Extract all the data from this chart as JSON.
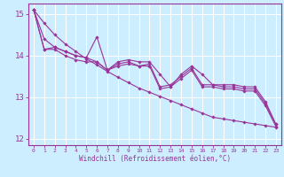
{
  "title": "",
  "xlabel": "Windchill (Refroidissement éolien,°C)",
  "ylabel": "",
  "x": [
    0,
    1,
    2,
    3,
    4,
    5,
    6,
    7,
    8,
    9,
    10,
    11,
    12,
    13,
    14,
    15,
    16,
    17,
    18,
    19,
    20,
    21,
    22,
    23
  ],
  "line1": [
    15.1,
    14.4,
    14.2,
    14.1,
    14.0,
    13.95,
    14.45,
    13.65,
    13.85,
    13.9,
    13.85,
    13.85,
    13.55,
    13.25,
    13.55,
    13.75,
    13.55,
    13.3,
    13.3,
    13.3,
    13.25,
    13.25,
    12.9,
    12.35
  ],
  "line2": [
    15.1,
    14.15,
    14.2,
    14.1,
    14.0,
    13.95,
    13.85,
    13.65,
    13.8,
    13.85,
    13.75,
    13.8,
    13.25,
    13.3,
    13.5,
    13.7,
    13.3,
    13.3,
    13.25,
    13.25,
    13.2,
    13.2,
    12.85,
    12.35
  ],
  "line3": [
    15.1,
    14.15,
    14.15,
    14.0,
    13.9,
    13.85,
    13.85,
    13.65,
    13.75,
    13.8,
    13.75,
    13.75,
    13.2,
    13.25,
    13.45,
    13.65,
    13.25,
    13.25,
    13.2,
    13.2,
    13.15,
    13.15,
    12.8,
    12.3
  ],
  "line_straight": [
    15.1,
    14.78,
    14.5,
    14.28,
    14.1,
    13.92,
    13.78,
    13.62,
    13.48,
    13.35,
    13.22,
    13.12,
    13.02,
    12.92,
    12.82,
    12.72,
    12.62,
    12.52,
    12.48,
    12.44,
    12.4,
    12.36,
    12.32,
    12.28
  ],
  "color": "#993399",
  "bg_color": "#cceeff",
  "grid_color": "#ffffff",
  "ylim": [
    11.85,
    15.25
  ],
  "yticks": [
    12,
    13,
    14,
    15
  ],
  "xticks": [
    0,
    1,
    2,
    3,
    4,
    5,
    6,
    7,
    8,
    9,
    10,
    11,
    12,
    13,
    14,
    15,
    16,
    17,
    18,
    19,
    20,
    21,
    22,
    23
  ]
}
